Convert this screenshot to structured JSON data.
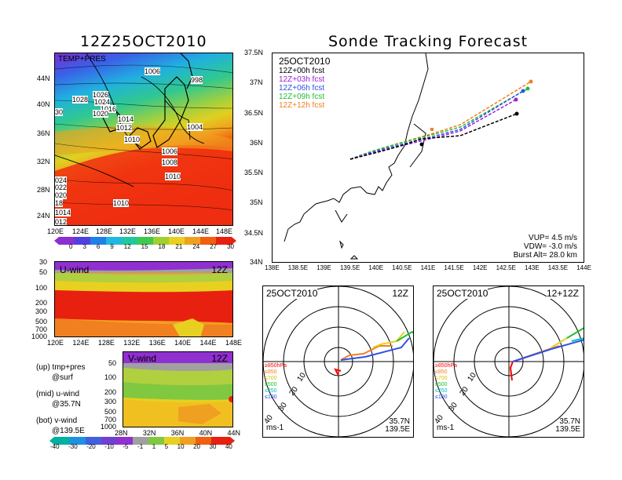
{
  "left_title": "12Z25OCT2010",
  "right_title": "Sonde Tracking Forecast",
  "map_panel": {
    "label": "TEMP+PRES",
    "lon_ticks": [
      "120E",
      "124E",
      "128E",
      "132E",
      "136E",
      "140E",
      "144E",
      "148E"
    ],
    "lat_ticks": [
      "44N",
      "40N",
      "36N",
      "32N",
      "28N",
      "24N"
    ],
    "isobar_labels": [
      "1006",
      "998",
      "1028",
      "1026",
      "1024",
      "1018",
      "1016",
      "1020",
      "1014",
      "1012",
      "1010",
      "1004",
      "1006",
      "1008",
      "1010",
      "1010",
      "30",
      "024",
      "022",
      "020",
      "18",
      "1014",
      "012"
    ]
  },
  "temp_colorbar": {
    "ticks": [
      "0",
      "3",
      "6",
      "9",
      "12",
      "15",
      "18",
      "21",
      "24",
      "27",
      "30"
    ]
  },
  "uwind_panel": {
    "label": "U-wind",
    "time": "12Z",
    "p_ticks": [
      "30",
      "50",
      "100",
      "200",
      "300",
      "500",
      "700",
      "1000"
    ],
    "lon_ticks": [
      "120E",
      "124E",
      "128E",
      "132E",
      "136E",
      "140E",
      "144E",
      "148E"
    ]
  },
  "vwind_panel": {
    "label": "V-wind",
    "time": "12Z",
    "p_ticks": [
      "50",
      "100",
      "200",
      "300",
      "500",
      "700",
      "1000"
    ],
    "lat_ticks": [
      "28N",
      "32N",
      "36N",
      "40N",
      "44N"
    ]
  },
  "legend_notes": [
    "(up) tmp+pres",
    "@surf",
    "(mid) u-wind",
    "@35.7N",
    "(bot) v-wind",
    "@139.5E"
  ],
  "wind_colorbar": {
    "ticks": [
      "-40",
      "-30",
      "-20",
      "-10",
      "-5",
      "-1",
      "1",
      "5",
      "10",
      "20",
      "30",
      "40"
    ]
  },
  "track_panel": {
    "date": "25OCT2010",
    "forecasts": [
      {
        "label": "12Z+00h  fcst",
        "color": "#000000"
      },
      {
        "label": "12Z+03h  fcst",
        "color": "#9b1fd8"
      },
      {
        "label": "12Z+06h  fcst",
        "color": "#3050e8"
      },
      {
        "label": "12Z+09h  fcst",
        "color": "#20c030"
      },
      {
        "label": "12Z+12h  fcst",
        "color": "#f08020"
      }
    ],
    "lat_ticks": [
      "37.5N",
      "37N",
      "36.5N",
      "36N",
      "35.5N",
      "35N",
      "34.5N",
      "34N"
    ],
    "lon_ticks": [
      "138E",
      "138.5E",
      "139E",
      "139.5E",
      "140E",
      "140.5E",
      "141E",
      "141.5E",
      "142E",
      "142.5E",
      "143E",
      "143.5E",
      "144E"
    ],
    "stats": [
      "VUP=  4.5  m/s",
      "VDW= -3.0  m/s",
      "Burst Alt=  28.0  km"
    ]
  },
  "hodo_left": {
    "date": "25OCT2010",
    "time": "12Z",
    "rings": [
      "10",
      "20",
      "30",
      "40"
    ],
    "levels": [
      {
        "label": "≥850hPa",
        "color": "#ff0000"
      },
      {
        "label": "≤850",
        "color": "#f08020"
      },
      {
        "label": "≤700",
        "color": "#e0c000"
      },
      {
        "label": "≤500",
        "color": "#20c030"
      },
      {
        "label": "≤250",
        "color": "#00c0c0"
      },
      {
        "label": "≤100",
        "color": "#3050e8"
      }
    ],
    "unit": "ms-1",
    "loc_lat": "35.7N",
    "loc_lon": "139.5E"
  },
  "hodo_right": {
    "date": "25OCT2010",
    "time": "12+12Z",
    "rings": [
      "10",
      "20",
      "30",
      "40"
    ],
    "levels": [
      {
        "label": "≥850hPa",
        "color": "#ff0000"
      },
      {
        "label": "≤850",
        "color": "#f08020"
      },
      {
        "label": "≤700",
        "color": "#e0c000"
      },
      {
        "label": "≤500",
        "color": "#20c030"
      },
      {
        "label": "≤250",
        "color": "#00c0c0"
      },
      {
        "label": "≤100",
        "color": "#3050e8"
      }
    ],
    "unit": "ms-1",
    "loc_lat": "35.7N",
    "loc_lon": "139.5E"
  }
}
